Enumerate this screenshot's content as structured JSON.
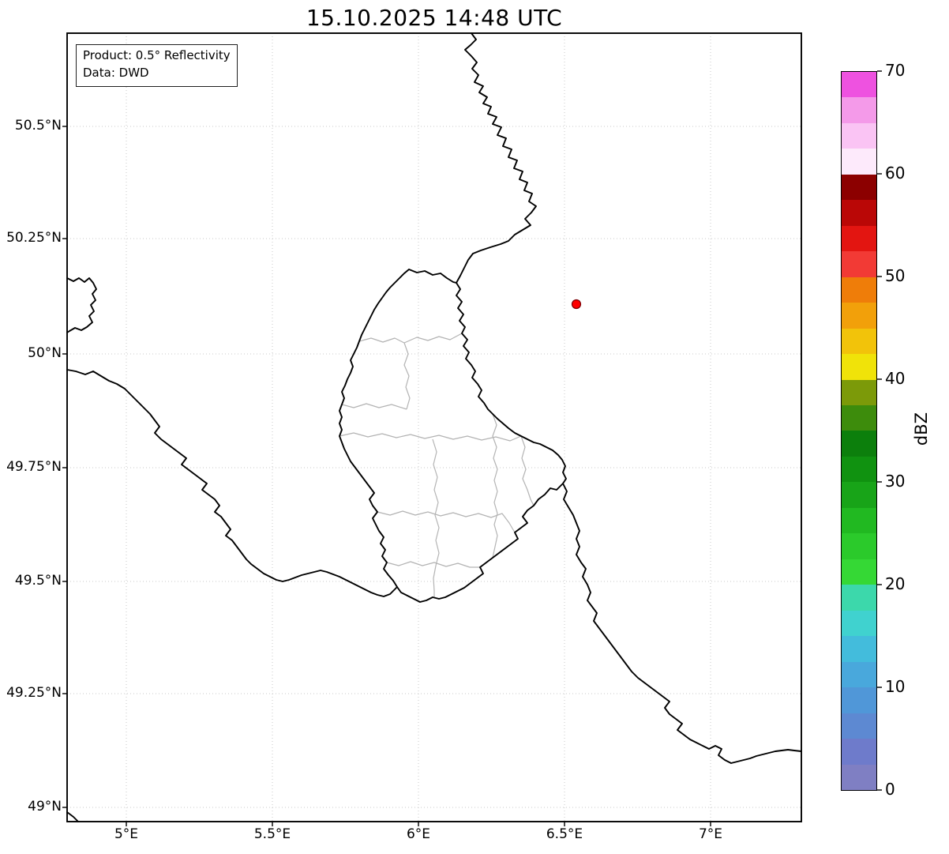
{
  "title": "15.10.2025 14:48 UTC",
  "info_box": {
    "product": "Product: 0.5° Reflectivity",
    "source": "Data: DWD"
  },
  "axes": {
    "x_tick_labels": [
      "5°E",
      "5.5°E",
      "6°E",
      "6.5°E",
      "7°E"
    ],
    "x_tick_values": [
      5.0,
      5.5,
      6.0,
      6.5,
      7.0
    ],
    "y_tick_labels": [
      "50.5°N",
      "50.25°N",
      "50°N",
      "49.75°N",
      "49.5°N",
      "49.25°N",
      "49°N"
    ],
    "y_tick_values": [
      50.5,
      50.25,
      50.0,
      49.75,
      49.5,
      49.25,
      49.0
    ],
    "lon_range": [
      4.8,
      7.31
    ],
    "lat_range": [
      48.97,
      50.7
    ],
    "grid": true
  },
  "colorbar": {
    "label": "dBZ",
    "min": 0,
    "max": 70,
    "tick_labels": [
      "0",
      "10",
      "20",
      "30",
      "40",
      "50",
      "60",
      "70"
    ],
    "tick_values": [
      0,
      10,
      20,
      30,
      40,
      50,
      60,
      70
    ],
    "band_width_dbz": 2.5,
    "colors_bottom_to_top": [
      "#7f7fc3",
      "#6e7bcb",
      "#5d89d2",
      "#5097d8",
      "#49a8dc",
      "#43bcdc",
      "#40d2cf",
      "#3cd8ab",
      "#35d835",
      "#2bca2b",
      "#21b921",
      "#18a418",
      "#109210",
      "#0c7f0c",
      "#3d8c0c",
      "#7c9a09",
      "#f0e309",
      "#f2c30a",
      "#f2a00a",
      "#ef7d09",
      "#f23a35",
      "#e31511",
      "#ba0706",
      "#8c0000",
      "#fdeafb",
      "#fac4f4",
      "#f49ae9",
      "#ee52e0"
    ]
  },
  "marker": {
    "color": "#ff0000",
    "edge_color": "#7a0006",
    "lon": 6.54,
    "lat": 50.11
  },
  "colors": {
    "country_border": "#000000",
    "district_border": "#b3b3b3",
    "grid": "#c9c9c9",
    "frame": "#000000",
    "background": "#ffffff"
  }
}
